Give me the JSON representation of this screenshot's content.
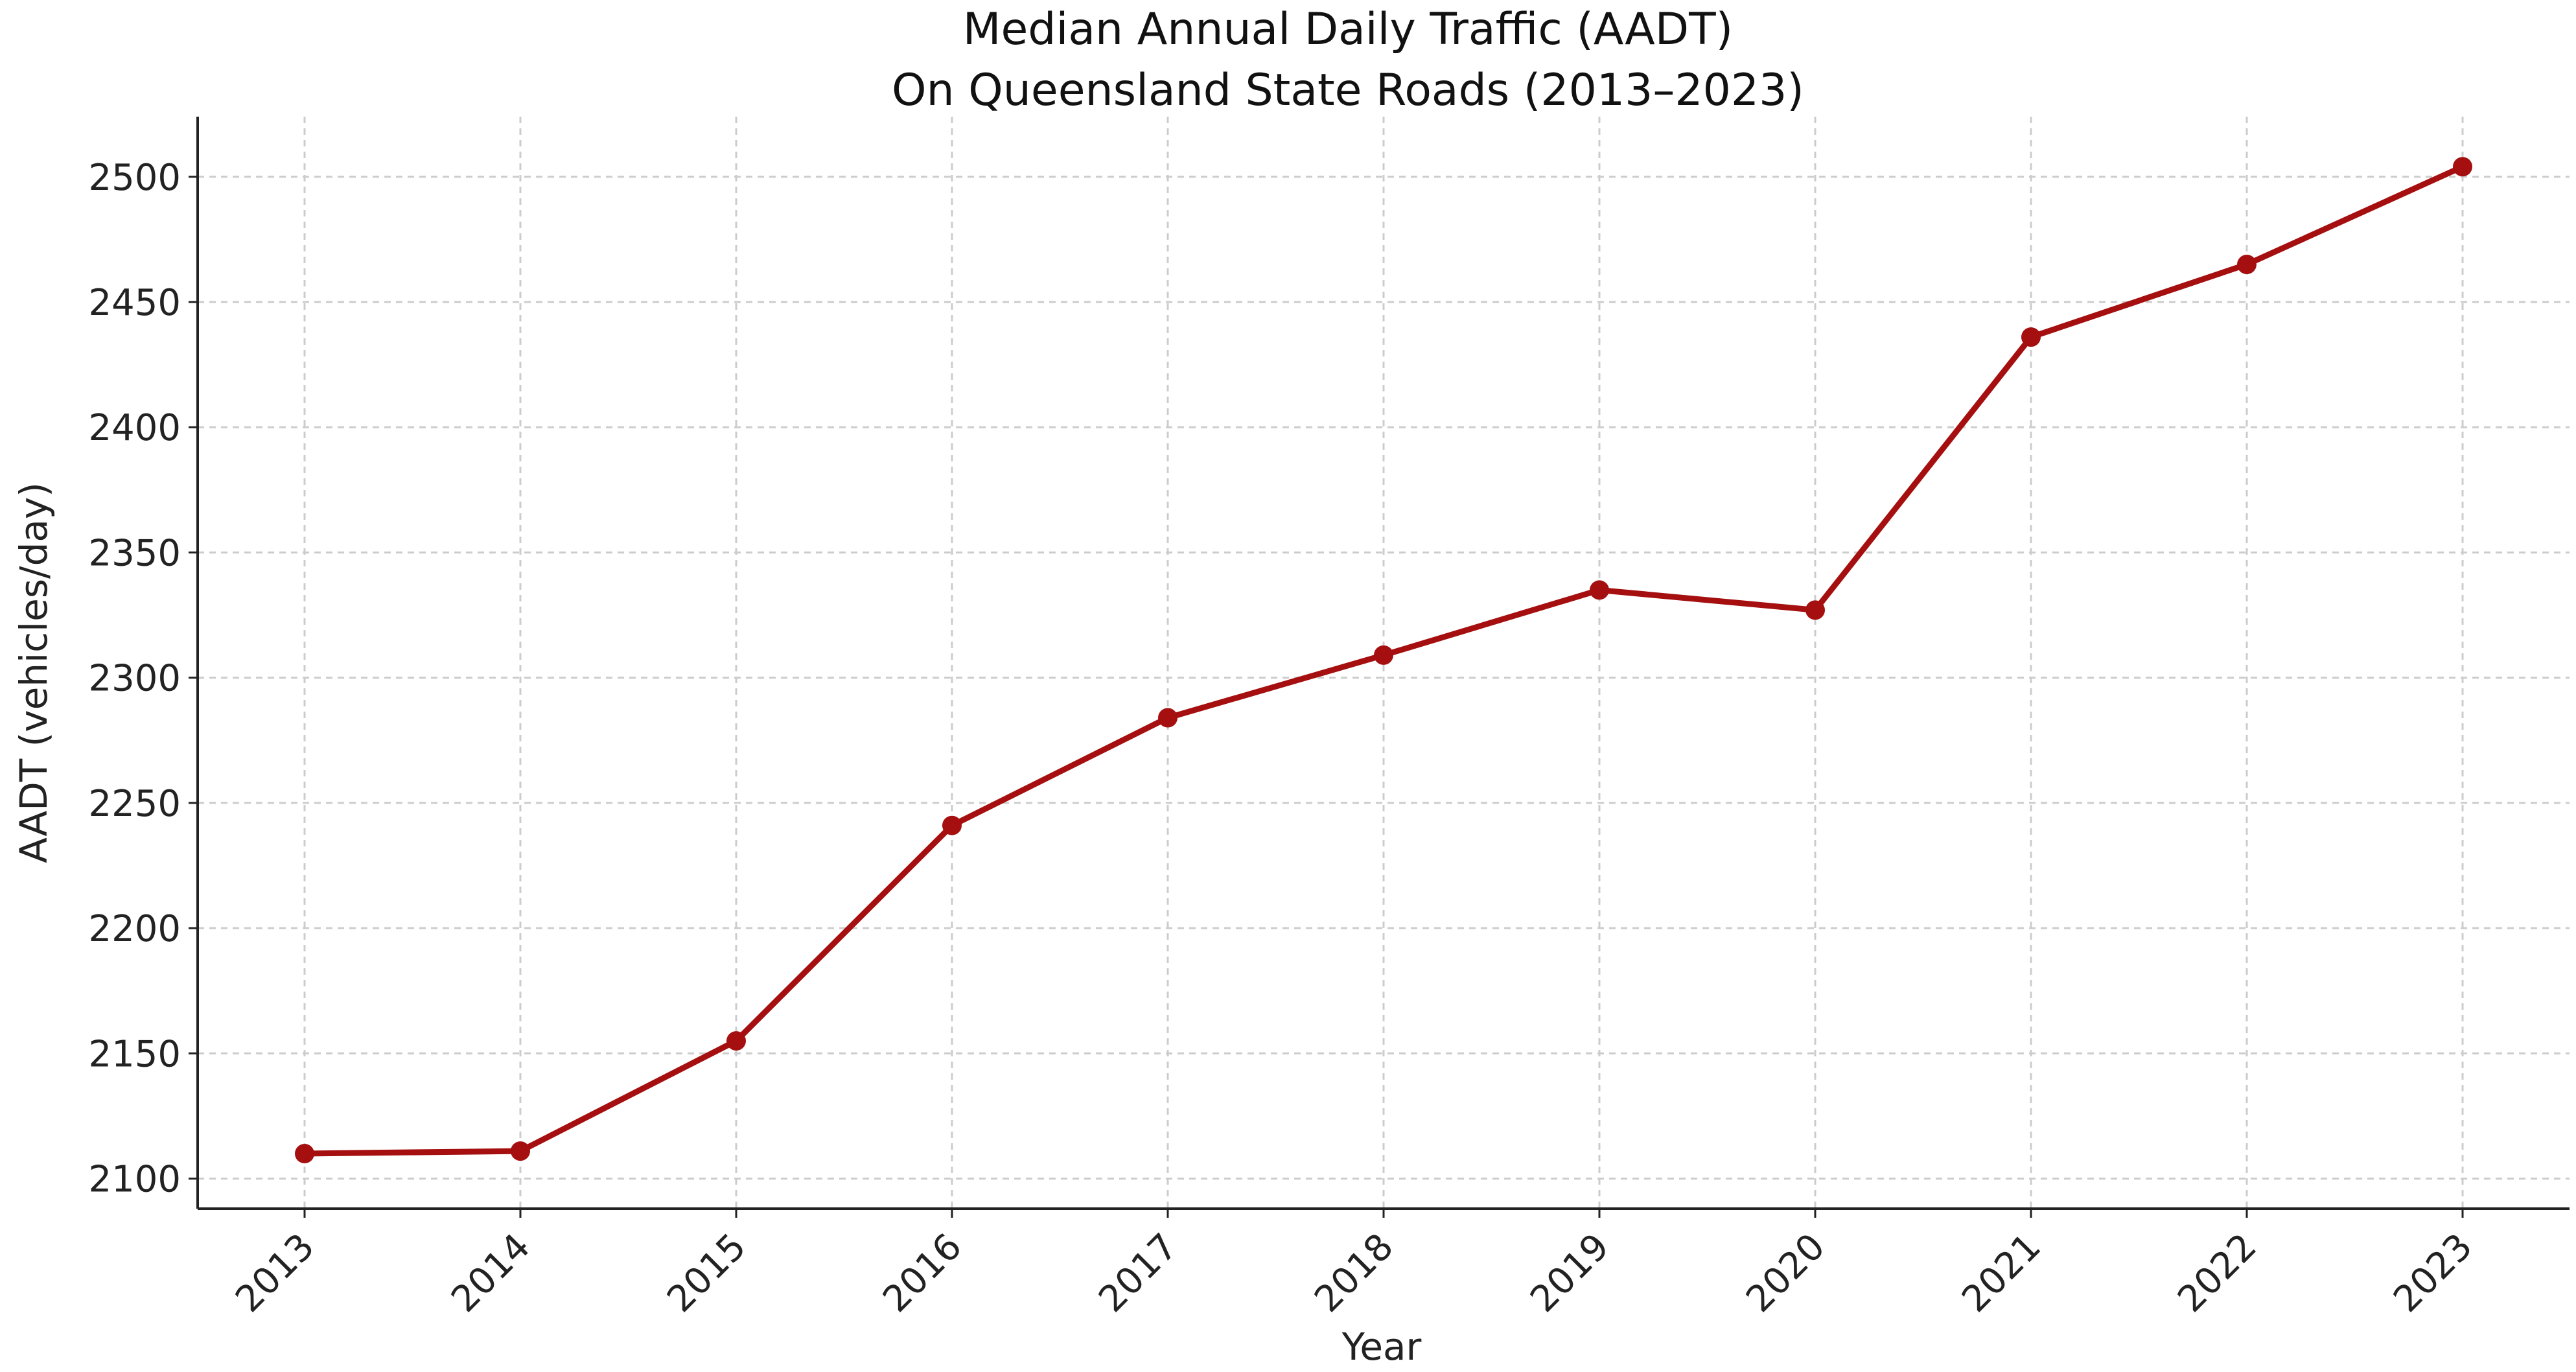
{
  "chart_data": {
    "type": "line",
    "title": "Median Annual Daily Traffic (AADT)",
    "subtitle": "On Queensland State Roads (2013–2023)",
    "xlabel": "Year",
    "ylabel": "AADT (vehicles/day)",
    "categories": [
      "2013",
      "2014",
      "2015",
      "2016",
      "2017",
      "2018",
      "2019",
      "2020",
      "2021",
      "2022",
      "2023"
    ],
    "series": [
      {
        "values": [
          2110,
          2111,
          2155,
          2241,
          2284,
          2309,
          2335,
          2327,
          2436,
          2465,
          2504
        ]
      }
    ],
    "ylim": [
      2088,
      2524
    ],
    "yticks": [
      2100,
      2150,
      2200,
      2250,
      2300,
      2350,
      2400,
      2450,
      2500
    ],
    "grid": true,
    "line_color": "#a50f0f",
    "grid_color": "#cccccc"
  }
}
